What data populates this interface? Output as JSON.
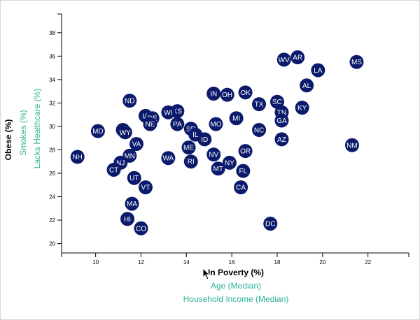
{
  "colors": {
    "circle": "#0b1a6b",
    "active_label": "#000000",
    "inactive_label": "#2ab597",
    "axis": "#000000"
  },
  "chart_data": {
    "type": "scatter",
    "title": "",
    "xlim": [
      8.5,
      23.8
    ],
    "ylim": [
      19.2,
      39.6
    ],
    "x_ticks": [
      10,
      12,
      14,
      16,
      18,
      20,
      22
    ],
    "y_ticks": [
      20,
      22,
      24,
      26,
      28,
      30,
      32,
      34,
      36,
      38
    ],
    "x_axis_labels": [
      {
        "text": "In Poverty (%)",
        "active": true
      },
      {
        "text": "Age (Median)",
        "active": false
      },
      {
        "text": "Household Income (Median)",
        "active": false
      }
    ],
    "y_axis_labels": [
      {
        "text": "Obese (%)",
        "active": true
      },
      {
        "text": "Smokes (%)",
        "active": false
      },
      {
        "text": "Lacks Healthcare (%)",
        "active": false
      }
    ],
    "points": [
      {
        "abbr": "MS",
        "x": 21.5,
        "y": 35.5
      },
      {
        "abbr": "AR",
        "x": 18.9,
        "y": 35.9
      },
      {
        "abbr": "WV",
        "x": 18.3,
        "y": 35.7
      },
      {
        "abbr": "LA",
        "x": 19.8,
        "y": 34.8
      },
      {
        "abbr": "AL",
        "x": 19.3,
        "y": 33.5
      },
      {
        "abbr": "OK",
        "x": 16.6,
        "y": 32.9
      },
      {
        "abbr": "IN",
        "x": 15.2,
        "y": 32.8
      },
      {
        "abbr": "OH",
        "x": 15.8,
        "y": 32.7
      },
      {
        "abbr": "SC",
        "x": 18.0,
        "y": 32.1
      },
      {
        "abbr": "ND",
        "x": 11.5,
        "y": 32.2
      },
      {
        "abbr": "TX",
        "x": 17.2,
        "y": 31.9
      },
      {
        "abbr": "KY",
        "x": 19.1,
        "y": 31.6
      },
      {
        "abbr": "TN",
        "x": 18.2,
        "y": 31.2
      },
      {
        "abbr": "KS",
        "x": 13.6,
        "y": 31.3
      },
      {
        "abbr": "WI",
        "x": 13.2,
        "y": 31.2
      },
      {
        "abbr": "IA",
        "x": 12.2,
        "y": 30.9
      },
      {
        "abbr": "DE",
        "x": 12.5,
        "y": 30.7
      },
      {
        "abbr": "GA",
        "x": 18.2,
        "y": 30.5
      },
      {
        "abbr": "MI",
        "x": 16.2,
        "y": 30.7
      },
      {
        "abbr": "NE",
        "x": 12.4,
        "y": 30.2
      },
      {
        "abbr": "MO",
        "x": 15.3,
        "y": 30.2
      },
      {
        "abbr": "PA",
        "x": 13.6,
        "y": 30.2
      },
      {
        "abbr": "SD",
        "x": 14.2,
        "y": 29.8
      },
      {
        "abbr": "MD",
        "x": 10.1,
        "y": 29.6
      },
      {
        "abbr": "NC",
        "x": 17.2,
        "y": 29.7
      },
      {
        "abbr": "AK",
        "x": 11.2,
        "y": 29.7
      },
      {
        "abbr": "WY",
        "x": 11.3,
        "y": 29.5
      },
      {
        "abbr": "IL",
        "x": 14.4,
        "y": 29.3
      },
      {
        "abbr": "ID",
        "x": 14.8,
        "y": 28.9
      },
      {
        "abbr": "AZ",
        "x": 18.2,
        "y": 28.9
      },
      {
        "abbr": "VA",
        "x": 11.8,
        "y": 28.5
      },
      {
        "abbr": "NM",
        "x": 21.3,
        "y": 28.4
      },
      {
        "abbr": "ME",
        "x": 14.1,
        "y": 28.2
      },
      {
        "abbr": "OR",
        "x": 16.6,
        "y": 27.9
      },
      {
        "abbr": "NV",
        "x": 15.2,
        "y": 27.6
      },
      {
        "abbr": "MN",
        "x": 11.5,
        "y": 27.5
      },
      {
        "abbr": "NH",
        "x": 9.2,
        "y": 27.4
      },
      {
        "abbr": "WA",
        "x": 13.2,
        "y": 27.3
      },
      {
        "abbr": "RI",
        "x": 14.2,
        "y": 27.0
      },
      {
        "abbr": "NJ",
        "x": 11.1,
        "y": 26.9
      },
      {
        "abbr": "NY",
        "x": 15.9,
        "y": 26.9
      },
      {
        "abbr": "CT",
        "x": 10.8,
        "y": 26.3
      },
      {
        "abbr": "MT",
        "x": 15.4,
        "y": 26.4
      },
      {
        "abbr": "FL",
        "x": 16.5,
        "y": 26.2
      },
      {
        "abbr": "UT",
        "x": 11.7,
        "y": 25.6
      },
      {
        "abbr": "VT",
        "x": 12.2,
        "y": 24.8
      },
      {
        "abbr": "CA",
        "x": 16.4,
        "y": 24.8
      },
      {
        "abbr": "MA",
        "x": 11.6,
        "y": 23.4
      },
      {
        "abbr": "HI",
        "x": 11.4,
        "y": 22.1
      },
      {
        "abbr": "DC",
        "x": 17.7,
        "y": 21.7
      },
      {
        "abbr": "CO",
        "x": 12.0,
        "y": 21.3
      }
    ]
  }
}
